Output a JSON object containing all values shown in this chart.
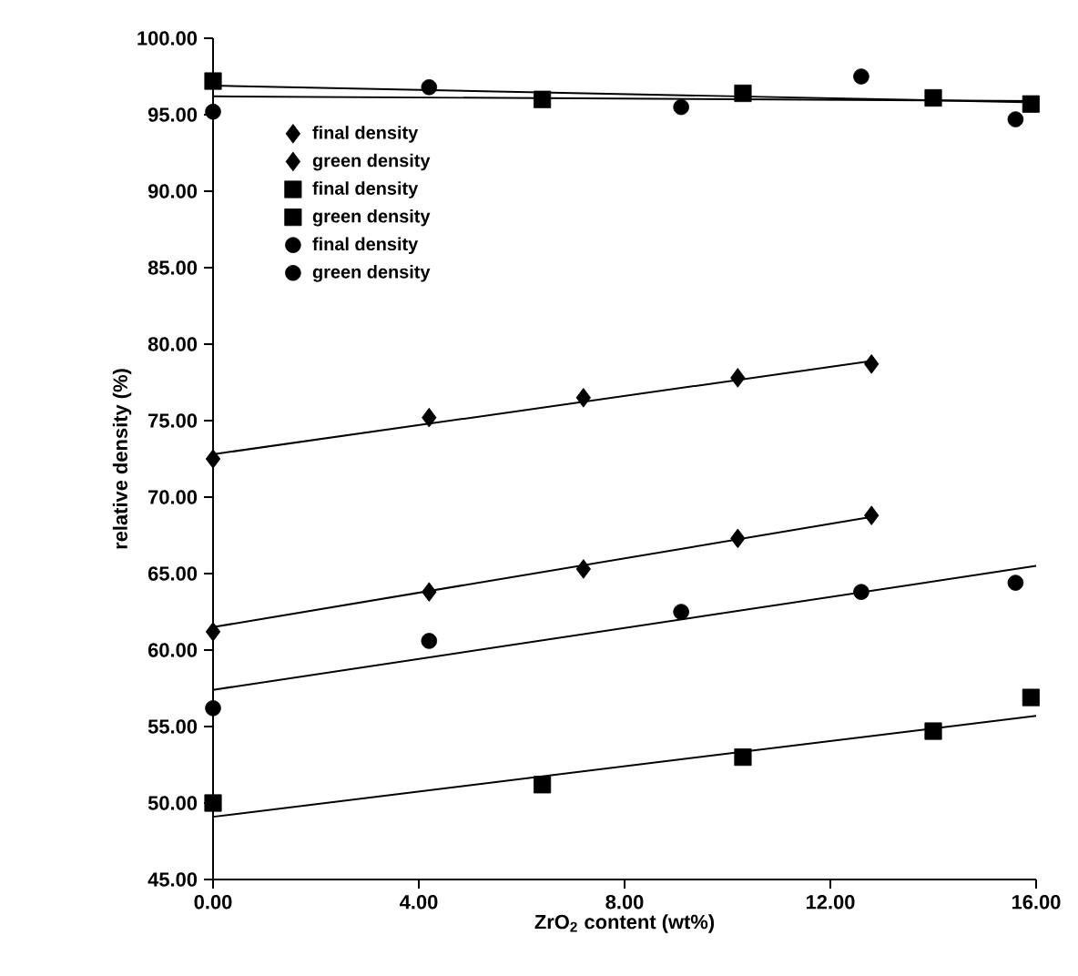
{
  "chart_data": {
    "type": "scatter",
    "xlabel": "ZrO$_{2}$ content (wt%)",
    "ylabel": "relative density (%)",
    "xlim": [
      0,
      16
    ],
    "ylim": [
      45,
      100
    ],
    "xticks": [
      {
        "value": 0,
        "label": "0.00"
      },
      {
        "value": 4,
        "label": "4.00"
      },
      {
        "value": 8,
        "label": "8.00"
      },
      {
        "value": 12,
        "label": "12.00"
      },
      {
        "value": 16,
        "label": "16.00"
      }
    ],
    "yticks": [
      {
        "value": 45,
        "label": "45.00"
      },
      {
        "value": 50,
        "label": "50.00"
      },
      {
        "value": 55,
        "label": "55.00"
      },
      {
        "value": 60,
        "label": "60.00"
      },
      {
        "value": 65,
        "label": "65.00"
      },
      {
        "value": 70,
        "label": "70.00"
      },
      {
        "value": 75,
        "label": "75.00"
      },
      {
        "value": 80,
        "label": "80.00"
      },
      {
        "value": 85,
        "label": "85.00"
      },
      {
        "value": 90,
        "label": "90.00"
      },
      {
        "value": 95,
        "label": "95.00"
      },
      {
        "value": 100,
        "label": "100.00"
      }
    ],
    "grid": false,
    "legend": "top left",
    "series": [
      {
        "name": "final density",
        "color": "#000000",
        "marker": "diamond",
        "x": [
          0,
          4.2,
          7.2,
          10.2,
          12.8
        ],
        "values": [
          72.5,
          75.2,
          76.5,
          77.8,
          78.7
        ]
      },
      {
        "name": "green density",
        "color": "#000000",
        "marker": "diamond",
        "x": [
          0,
          4.2,
          7.2,
          10.2,
          12.8
        ],
        "values": [
          61.2,
          63.8,
          65.3,
          67.3,
          68.8
        ]
      },
      {
        "name": "final density",
        "color": "#000000",
        "marker": "square",
        "x": [
          0,
          6.4,
          10.3,
          14,
          15.9
        ],
        "values": [
          97.2,
          96.0,
          96.4,
          96.1,
          95.7
        ]
      },
      {
        "name": "green density",
        "color": "#000000",
        "marker": "square",
        "x": [
          0,
          6.4,
          10.3,
          14,
          15.9
        ],
        "values": [
          50.0,
          51.2,
          53.0,
          54.7,
          56.9
        ]
      },
      {
        "name": "final density",
        "color": "#000000",
        "marker": "circle",
        "x": [
          0,
          4.2,
          9.1,
          12.6,
          15.6
        ],
        "values": [
          95.2,
          96.8,
          95.5,
          97.5,
          94.7
        ]
      },
      {
        "name": "green density",
        "color": "#000000",
        "marker": "circle",
        "x": [
          0,
          4.2,
          9.1,
          12.6,
          15.6
        ],
        "values": [
          56.2,
          60.6,
          62.5,
          63.8,
          64.4
        ]
      },
      {
        "type": "line",
        "color": "#000000",
        "marker": "none",
        "line_style": "solid",
        "x": [
          0,
          12.8
        ],
        "values": [
          72.8,
          78.9
        ]
      },
      {
        "type": "line",
        "color": "#000000",
        "marker": "none",
        "line_style": "solid",
        "x": [
          0,
          12.8
        ],
        "values": [
          61.5,
          68.7
        ]
      },
      {
        "type": "line",
        "color": "#000000",
        "marker": "none",
        "line_style": "solid",
        "x": [
          0,
          16
        ],
        "values": [
          96.9,
          95.8
        ]
      },
      {
        "type": "line",
        "color": "#000000",
        "marker": "none",
        "line_style": "solid",
        "x": [
          0,
          16
        ],
        "values": [
          49.1,
          55.7
        ]
      },
      {
        "type": "line",
        "color": "#000000",
        "marker": "none",
        "line_style": "solid",
        "x": [
          0,
          16
        ],
        "values": [
          96.2,
          95.9
        ]
      },
      {
        "type": "line",
        "color": "#000000",
        "marker": "none",
        "line_style": "solid",
        "x": [
          0,
          16
        ],
        "values": [
          57.4,
          65.5
        ]
      }
    ]
  }
}
